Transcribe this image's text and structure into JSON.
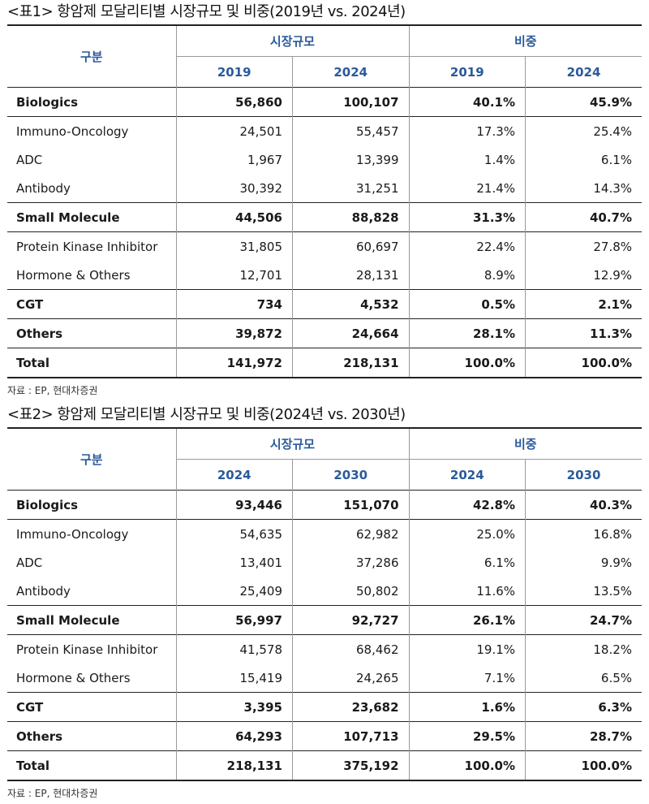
{
  "source": "자료 : EP, 현대차증권",
  "tables": [
    {
      "title": "<표1> 항암제 모달리티별 시장규모 및 비중(2019년 vs. 2024년)",
      "header": {
        "category": "구분",
        "group1": "시장규모",
        "group2": "비중",
        "years": [
          "2019",
          "2024",
          "2019",
          "2024"
        ]
      },
      "rows": [
        {
          "label": "Biologics",
          "values": [
            "56,860",
            "100,107",
            "40.1%",
            "45.9%"
          ],
          "bold": true,
          "sep": true
        },
        {
          "label": "Immuno-Oncology",
          "values": [
            "24,501",
            "55,457",
            "17.3%",
            "25.4%"
          ],
          "bold": false,
          "sep": true
        },
        {
          "label": "ADC",
          "values": [
            "1,967",
            "13,399",
            "1.4%",
            "6.1%"
          ],
          "bold": false,
          "sep": false
        },
        {
          "label": "Antibody",
          "values": [
            "30,392",
            "31,251",
            "21.4%",
            "14.3%"
          ],
          "bold": false,
          "sep": false
        },
        {
          "label": "Small Molecule",
          "values": [
            "44,506",
            "88,828",
            "31.3%",
            "40.7%"
          ],
          "bold": true,
          "sep": true
        },
        {
          "label": "Protein Kinase Inhibitor",
          "values": [
            "31,805",
            "60,697",
            "22.4%",
            "27.8%"
          ],
          "bold": false,
          "sep": true
        },
        {
          "label": "Hormone & Others",
          "values": [
            "12,701",
            "28,131",
            "8.9%",
            "12.9%"
          ],
          "bold": false,
          "sep": false
        },
        {
          "label": "CGT",
          "values": [
            "734",
            "4,532",
            "0.5%",
            "2.1%"
          ],
          "bold": true,
          "sep": true
        },
        {
          "label": "Others",
          "values": [
            "39,872",
            "24,664",
            "28.1%",
            "11.3%"
          ],
          "bold": true,
          "sep": true
        },
        {
          "label": "Total",
          "values": [
            "141,972",
            "218,131",
            "100.0%",
            "100.0%"
          ],
          "bold": true,
          "sep": true
        }
      ]
    },
    {
      "title": "<표2> 항암제 모달리티별 시장규모 및 비중(2024년 vs. 2030년)",
      "header": {
        "category": "구분",
        "group1": "시장규모",
        "group2": "비중",
        "years": [
          "2024",
          "2030",
          "2024",
          "2030"
        ]
      },
      "rows": [
        {
          "label": "Biologics",
          "values": [
            "93,446",
            "151,070",
            "42.8%",
            "40.3%"
          ],
          "bold": true,
          "sep": true
        },
        {
          "label": "Immuno-Oncology",
          "values": [
            "54,635",
            "62,982",
            "25.0%",
            "16.8%"
          ],
          "bold": false,
          "sep": true
        },
        {
          "label": "ADC",
          "values": [
            "13,401",
            "37,286",
            "6.1%",
            "9.9%"
          ],
          "bold": false,
          "sep": false
        },
        {
          "label": "Antibody",
          "values": [
            "25,409",
            "50,802",
            "11.6%",
            "13.5%"
          ],
          "bold": false,
          "sep": false
        },
        {
          "label": "Small Molecule",
          "values": [
            "56,997",
            "92,727",
            "26.1%",
            "24.7%"
          ],
          "bold": true,
          "sep": true
        },
        {
          "label": "Protein Kinase Inhibitor",
          "values": [
            "41,578",
            "68,462",
            "19.1%",
            "18.2%"
          ],
          "bold": false,
          "sep": true
        },
        {
          "label": "Hormone & Others",
          "values": [
            "15,419",
            "24,265",
            "7.1%",
            "6.5%"
          ],
          "bold": false,
          "sep": false
        },
        {
          "label": "CGT",
          "values": [
            "3,395",
            "23,682",
            "1.6%",
            "6.3%"
          ],
          "bold": true,
          "sep": true
        },
        {
          "label": "Others",
          "values": [
            "64,293",
            "107,713",
            "29.5%",
            "28.7%"
          ],
          "bold": true,
          "sep": true
        },
        {
          "label": "Total",
          "values": [
            "218,131",
            "375,192",
            "100.0%",
            "100.0%"
          ],
          "bold": true,
          "sep": true
        }
      ]
    }
  ]
}
